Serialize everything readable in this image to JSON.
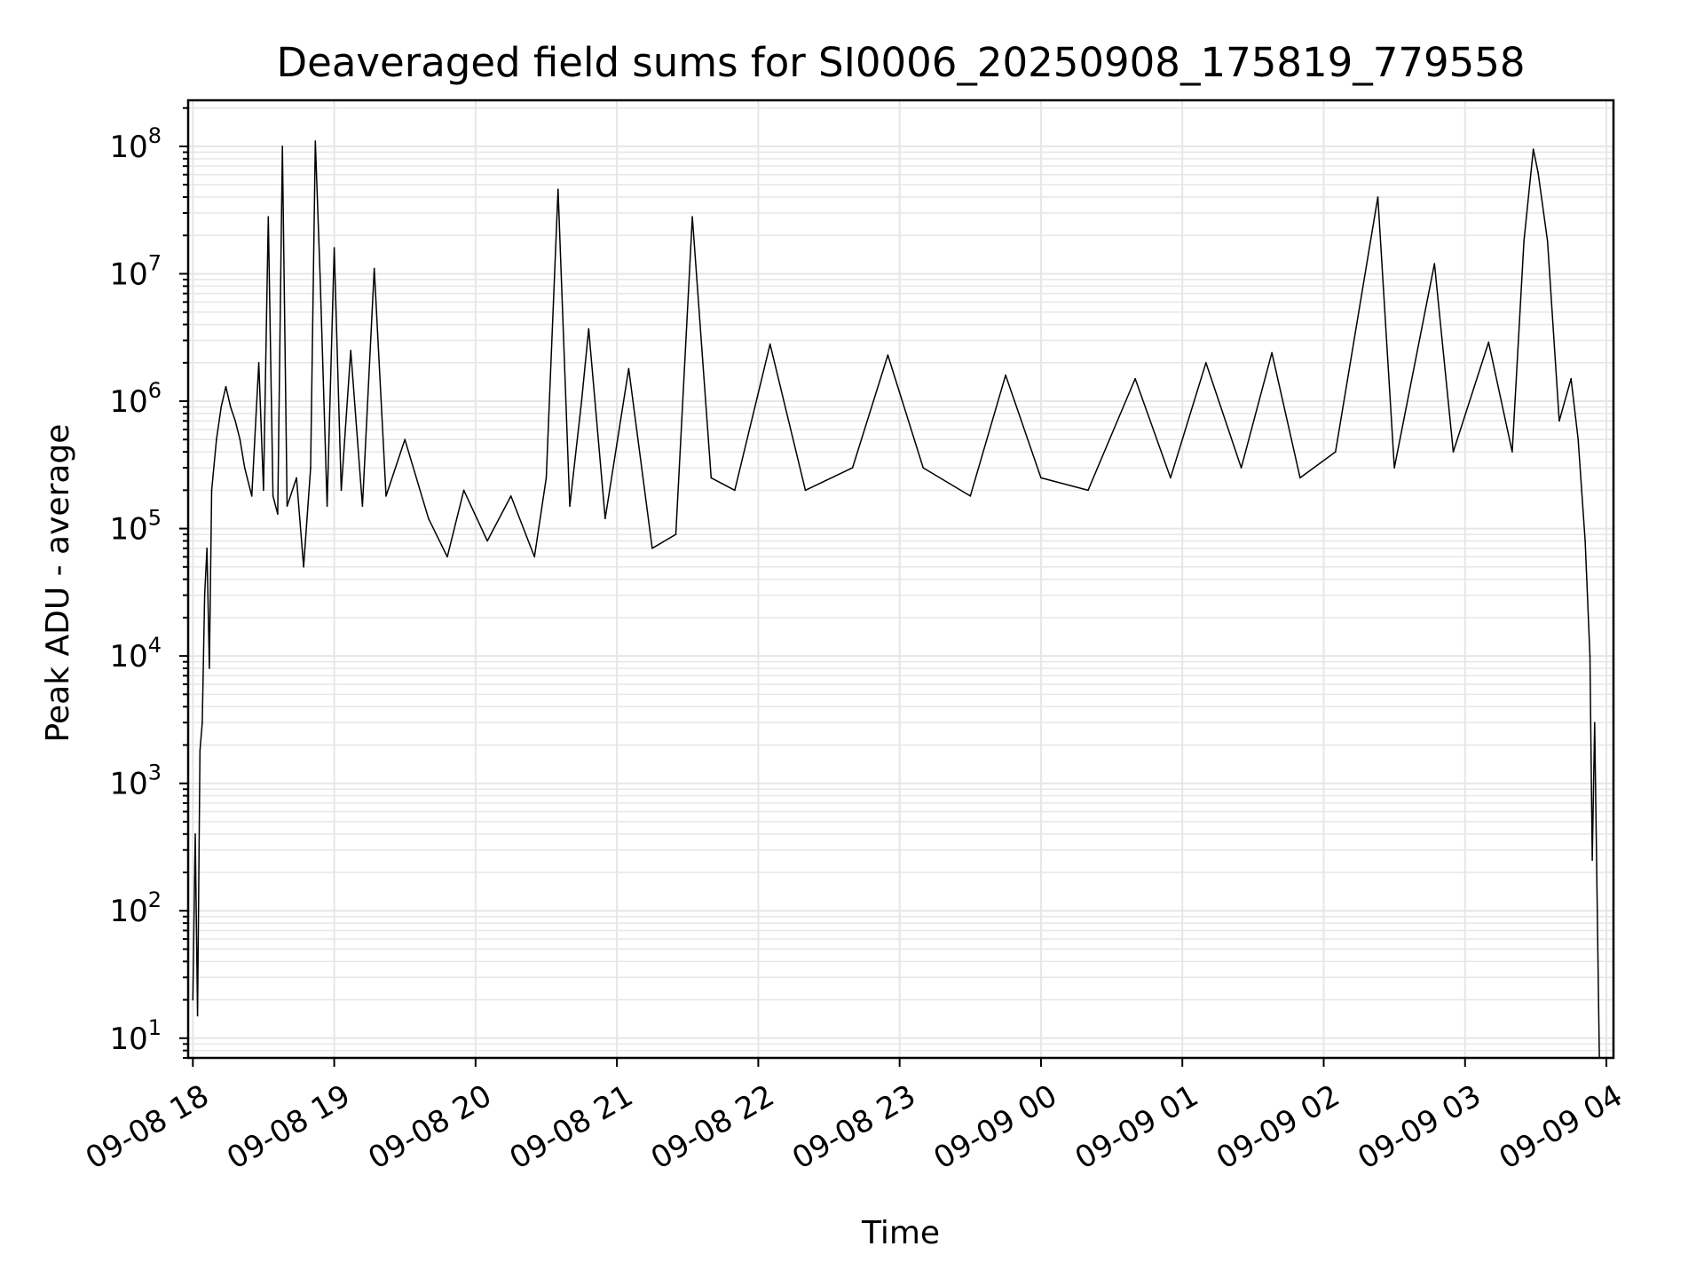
{
  "chart_data": {
    "type": "line",
    "title": "Deaveraged field sums for SI0006_20250908_175819_779558",
    "xlabel": "Time",
    "ylabel": "Peak ADU - average",
    "y_scale": "log",
    "ylim": [
      7,
      230000000
    ],
    "xlim": [
      "2025-09-08 17:58",
      "2025-09-09 04:03"
    ],
    "grid": "on (major and minor)",
    "x_ticks": [
      {
        "label": "09-08 18",
        "t": "2025-09-08 18:00"
      },
      {
        "label": "09-08 19",
        "t": "2025-09-08 19:00"
      },
      {
        "label": "09-08 20",
        "t": "2025-09-08 20:00"
      },
      {
        "label": "09-08 21",
        "t": "2025-09-08 21:00"
      },
      {
        "label": "09-08 22",
        "t": "2025-09-08 22:00"
      },
      {
        "label": "09-08 23",
        "t": "2025-09-08 23:00"
      },
      {
        "label": "09-09 00",
        "t": "2025-09-09 00:00"
      },
      {
        "label": "09-09 01",
        "t": "2025-09-09 01:00"
      },
      {
        "label": "09-09 02",
        "t": "2025-09-09 02:00"
      },
      {
        "label": "09-09 03",
        "t": "2025-09-09 03:00"
      },
      {
        "label": "09-09 04",
        "t": "2025-09-09 04:00"
      }
    ],
    "y_ticks": [
      {
        "base": "10",
        "exp": "1",
        "value": 10
      },
      {
        "base": "10",
        "exp": "2",
        "value": 100
      },
      {
        "base": "10",
        "exp": "3",
        "value": 1000
      },
      {
        "base": "10",
        "exp": "4",
        "value": 10000
      },
      {
        "base": "10",
        "exp": "5",
        "value": 100000
      },
      {
        "base": "10",
        "exp": "6",
        "value": 1000000
      },
      {
        "base": "10",
        "exp": "7",
        "value": 10000000
      },
      {
        "base": "10",
        "exp": "8",
        "value": 100000000
      }
    ],
    "line_color": "#000000",
    "grid_color": "#e6e6e6",
    "series": [
      {
        "points": [
          [
            "2025-09-08 18:00",
            20
          ],
          [
            "2025-09-08 18:01",
            400
          ],
          [
            "2025-09-08 18:02",
            15
          ],
          [
            "2025-09-08 18:03",
            1800
          ],
          [
            "2025-09-08 18:04",
            3000
          ],
          [
            "2025-09-08 18:05",
            30000
          ],
          [
            "2025-09-08 18:06",
            70000
          ],
          [
            "2025-09-08 18:07",
            8000
          ],
          [
            "2025-09-08 18:08",
            200000
          ],
          [
            "2025-09-08 18:10",
            500000
          ],
          [
            "2025-09-08 18:12",
            900000
          ],
          [
            "2025-09-08 18:14",
            1300000
          ],
          [
            "2025-09-08 18:16",
            900000
          ],
          [
            "2025-09-08 18:18",
            700000
          ],
          [
            "2025-09-08 18:20",
            500000
          ],
          [
            "2025-09-08 18:22",
            300000
          ],
          [
            "2025-09-08 18:25",
            180000
          ],
          [
            "2025-09-08 18:28",
            2000000
          ],
          [
            "2025-09-08 18:30",
            200000
          ],
          [
            "2025-09-08 18:32",
            28000000
          ],
          [
            "2025-09-08 18:34",
            180000
          ],
          [
            "2025-09-08 18:36",
            130000
          ],
          [
            "2025-09-08 18:38",
            100000000
          ],
          [
            "2025-09-08 18:40",
            150000
          ],
          [
            "2025-09-08 18:44",
            250000
          ],
          [
            "2025-09-08 18:47",
            50000
          ],
          [
            "2025-09-08 18:50",
            300000
          ],
          [
            "2025-09-08 18:52",
            110000000
          ],
          [
            "2025-09-08 18:54",
            9500000
          ],
          [
            "2025-09-08 18:57",
            150000
          ],
          [
            "2025-09-08 19:00",
            16000000
          ],
          [
            "2025-09-08 19:03",
            200000
          ],
          [
            "2025-09-08 19:07",
            2500000
          ],
          [
            "2025-09-08 19:12",
            150000
          ],
          [
            "2025-09-08 19:17",
            11000000
          ],
          [
            "2025-09-08 19:22",
            180000
          ],
          [
            "2025-09-08 19:30",
            500000
          ],
          [
            "2025-09-08 19:40",
            120000
          ],
          [
            "2025-09-08 19:48",
            60000
          ],
          [
            "2025-09-08 19:55",
            200000
          ],
          [
            "2025-09-08 20:05",
            80000
          ],
          [
            "2025-09-08 20:15",
            180000
          ],
          [
            "2025-09-08 20:25",
            60000
          ],
          [
            "2025-09-08 20:30",
            250000
          ],
          [
            "2025-09-08 20:35",
            46000000
          ],
          [
            "2025-09-08 20:40",
            150000
          ],
          [
            "2025-09-08 20:45",
            1000000
          ],
          [
            "2025-09-08 20:48",
            3700000
          ],
          [
            "2025-09-08 20:55",
            120000
          ],
          [
            "2025-09-08 21:05",
            1800000
          ],
          [
            "2025-09-08 21:15",
            70000
          ],
          [
            "2025-09-08 21:25",
            90000
          ],
          [
            "2025-09-08 21:32",
            28000000
          ],
          [
            "2025-09-08 21:40",
            250000
          ],
          [
            "2025-09-08 21:50",
            200000
          ],
          [
            "2025-09-08 22:05",
            2800000
          ],
          [
            "2025-09-08 22:20",
            200000
          ],
          [
            "2025-09-08 22:40",
            300000
          ],
          [
            "2025-09-08 22:55",
            2300000
          ],
          [
            "2025-09-08 23:10",
            300000
          ],
          [
            "2025-09-08 23:30",
            180000
          ],
          [
            "2025-09-08 23:45",
            1600000
          ],
          [
            "2025-09-09 00:00",
            250000
          ],
          [
            "2025-09-09 00:20",
            200000
          ],
          [
            "2025-09-09 00:40",
            1500000
          ],
          [
            "2025-09-09 00:55",
            250000
          ],
          [
            "2025-09-09 01:10",
            2000000
          ],
          [
            "2025-09-09 01:25",
            300000
          ],
          [
            "2025-09-09 01:38",
            2400000
          ],
          [
            "2025-09-09 01:50",
            250000
          ],
          [
            "2025-09-09 02:05",
            400000
          ],
          [
            "2025-09-09 02:23",
            40000000
          ],
          [
            "2025-09-09 02:30",
            300000
          ],
          [
            "2025-09-09 02:47",
            12000000
          ],
          [
            "2025-09-09 02:55",
            400000
          ],
          [
            "2025-09-09 03:10",
            2900000
          ],
          [
            "2025-09-09 03:20",
            400000
          ],
          [
            "2025-09-09 03:25",
            18000000
          ],
          [
            "2025-09-09 03:29",
            95000000
          ],
          [
            "2025-09-09 03:31",
            62000000
          ],
          [
            "2025-09-09 03:35",
            18000000
          ],
          [
            "2025-09-09 03:40",
            700000
          ],
          [
            "2025-09-09 03:45",
            1500000
          ],
          [
            "2025-09-09 03:48",
            500000
          ],
          [
            "2025-09-09 03:51",
            80000
          ],
          [
            "2025-09-09 03:53",
            10000
          ],
          [
            "2025-09-09 03:54",
            250
          ],
          [
            "2025-09-09 03:55",
            3000
          ],
          [
            "2025-09-09 03:56",
            150
          ],
          [
            "2025-09-09 03:57",
            7
          ]
        ]
      }
    ]
  }
}
